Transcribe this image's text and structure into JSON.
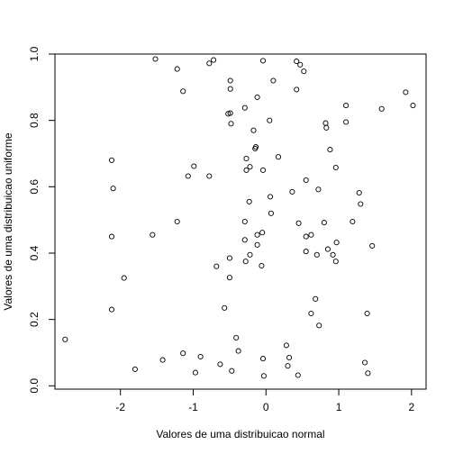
{
  "chart_data": {
    "type": "scatter",
    "title": "",
    "xlabel": "Valores de uma distribuicao normal",
    "ylabel": "Valores de uma distribuicao uniforme",
    "xlim": [
      -2.9,
      2.2
    ],
    "ylim": [
      -0.01,
      1.0
    ],
    "xticks": [
      -2,
      -1,
      0,
      1,
      2
    ],
    "yticks": [
      0.0,
      0.2,
      0.4,
      0.6,
      0.8,
      1.0
    ],
    "xtick_labels": [
      "-2",
      "-1",
      "0",
      "1",
      "2"
    ],
    "ytick_labels": [
      "0.0",
      "0.2",
      "0.4",
      "0.6",
      "0.8",
      "1.0"
    ],
    "grid": false,
    "marker": "open-circle",
    "points": [
      [
        -2.76,
        0.14
      ],
      [
        -2.12,
        0.68
      ],
      [
        -2.1,
        0.595
      ],
      [
        -2.12,
        0.45
      ],
      [
        -2.12,
        0.23
      ],
      [
        -1.95,
        0.325
      ],
      [
        -1.8,
        0.05
      ],
      [
        -1.52,
        0.985
      ],
      [
        -1.56,
        0.455
      ],
      [
        -1.42,
        0.078
      ],
      [
        -1.22,
        0.955
      ],
      [
        -1.22,
        0.495
      ],
      [
        -1.14,
        0.888
      ],
      [
        -1.14,
        0.098
      ],
      [
        -1.07,
        0.632
      ],
      [
        -0.99,
        0.662
      ],
      [
        -0.97,
        0.04
      ],
      [
        -0.9,
        0.088
      ],
      [
        -0.78,
        0.972
      ],
      [
        -0.72,
        0.982
      ],
      [
        -0.78,
        0.632
      ],
      [
        -0.68,
        0.36
      ],
      [
        -0.63,
        0.065
      ],
      [
        -0.57,
        0.235
      ],
      [
        -0.52,
        0.82
      ],
      [
        -0.49,
        0.822
      ],
      [
        -0.49,
        0.92
      ],
      [
        -0.49,
        0.895
      ],
      [
        -0.48,
        0.79
      ],
      [
        -0.5,
        0.385
      ],
      [
        -0.5,
        0.326
      ],
      [
        -0.47,
        0.045
      ],
      [
        -0.41,
        0.145
      ],
      [
        -0.38,
        0.105
      ],
      [
        -0.29,
        0.838
      ],
      [
        -0.27,
        0.685
      ],
      [
        -0.27,
        0.65
      ],
      [
        -0.22,
        0.66
      ],
      [
        -0.23,
        0.555
      ],
      [
        -0.29,
        0.495
      ],
      [
        -0.29,
        0.44
      ],
      [
        -0.28,
        0.375
      ],
      [
        -0.17,
        0.77
      ],
      [
        -0.14,
        0.72
      ],
      [
        -0.15,
        0.715
      ],
      [
        -0.12,
        0.87
      ],
      [
        -0.12,
        0.455
      ],
      [
        -0.12,
        0.425
      ],
      [
        -0.22,
        0.395
      ],
      [
        -0.04,
        0.98
      ],
      [
        -0.04,
        0.65
      ],
      [
        -0.05,
        0.462
      ],
      [
        -0.06,
        0.362
      ],
      [
        -0.04,
        0.082
      ],
      [
        -0.03,
        0.03
      ],
      [
        0.05,
        0.8
      ],
      [
        0.06,
        0.57
      ],
      [
        0.07,
        0.52
      ],
      [
        0.1,
        0.92
      ],
      [
        0.17,
        0.69
      ],
      [
        0.28,
        0.122
      ],
      [
        0.3,
        0.06
      ],
      [
        0.32,
        0.085
      ],
      [
        0.36,
        0.585
      ],
      [
        0.42,
        0.978
      ],
      [
        0.42,
        0.893
      ],
      [
        0.45,
        0.49
      ],
      [
        0.44,
        0.032
      ],
      [
        0.47,
        0.968
      ],
      [
        0.52,
        0.948
      ],
      [
        0.55,
        0.62
      ],
      [
        0.55,
        0.45
      ],
      [
        0.55,
        0.405
      ],
      [
        0.62,
        0.455
      ],
      [
        0.62,
        0.218
      ],
      [
        0.68,
        0.262
      ],
      [
        0.7,
        0.395
      ],
      [
        0.72,
        0.592
      ],
      [
        0.73,
        0.182
      ],
      [
        0.8,
        0.492
      ],
      [
        0.82,
        0.792
      ],
      [
        0.83,
        0.778
      ],
      [
        0.85,
        0.412
      ],
      [
        0.88,
        0.712
      ],
      [
        0.92,
        0.395
      ],
      [
        0.96,
        0.658
      ],
      [
        0.97,
        0.432
      ],
      [
        0.96,
        0.375
      ],
      [
        1.1,
        0.845
      ],
      [
        1.1,
        0.795
      ],
      [
        1.19,
        0.495
      ],
      [
        1.28,
        0.582
      ],
      [
        1.3,
        0.548
      ],
      [
        1.36,
        0.07
      ],
      [
        1.39,
        0.218
      ],
      [
        1.4,
        0.038
      ],
      [
        1.46,
        0.422
      ],
      [
        1.59,
        0.835
      ],
      [
        1.92,
        0.885
      ],
      [
        2.02,
        0.845
      ]
    ]
  }
}
